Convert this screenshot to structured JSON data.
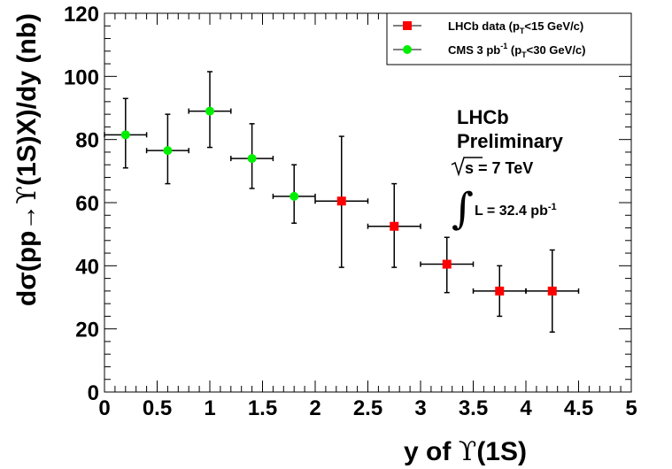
{
  "chart_data": {
    "type": "scatter",
    "title": "",
    "xlabel_prefix": "y of ",
    "xlabel_symbol": "ϒ",
    "xlabel_suffix": "(1S)",
    "ylabel_prefix": "dσ(pp→",
    "ylabel_symbol": "ϒ",
    "ylabel_suffix": "(1S)X)/dy (nb)",
    "xlim": [
      0,
      5
    ],
    "ylim": [
      0,
      120
    ],
    "xticks": [
      "0",
      "0.5",
      "1",
      "1.5",
      "2",
      "2.5",
      "3",
      "3.5",
      "4",
      "4.5",
      "5"
    ],
    "yticks": [
      "0",
      "20",
      "40",
      "60",
      "80",
      "100",
      "120"
    ],
    "grid": false,
    "legend_position": "top-right",
    "series": [
      {
        "name": "LHCb data (pT<15 GeV/c)",
        "legend_main": "LHCb data (p",
        "legend_sub": "T",
        "legend_rest": "<15 GeV/c)",
        "color": "#ff0000",
        "marker": "square",
        "points": [
          {
            "x": 2.25,
            "xerr": 0.25,
            "y": 60.5,
            "ylo": 39.5,
            "yhi": 81.0
          },
          {
            "x": 2.75,
            "xerr": 0.25,
            "y": 52.5,
            "ylo": 39.5,
            "yhi": 66.0
          },
          {
            "x": 3.25,
            "xerr": 0.25,
            "y": 40.5,
            "ylo": 31.5,
            "yhi": 49.0
          },
          {
            "x": 3.75,
            "xerr": 0.25,
            "y": 32.0,
            "ylo": 24.0,
            "yhi": 40.0
          },
          {
            "x": 4.25,
            "xerr": 0.25,
            "y": 32.0,
            "ylo": 19.0,
            "yhi": 45.0
          }
        ]
      },
      {
        "name": "CMS 3 pb-1 (pT<30 GeV/c)",
        "legend_main": "CMS 3 pb",
        "legend_sup": "-1",
        "legend_mid": " (p",
        "legend_sub": "T",
        "legend_rest": "<30 GeV/c)",
        "color": "#00ee00",
        "marker": "circle",
        "points": [
          {
            "x": 0.2,
            "xerr": 0.2,
            "y": 81.5,
            "ylo": 71.0,
            "yhi": 93.0
          },
          {
            "x": 0.6,
            "xerr": 0.2,
            "y": 76.5,
            "ylo": 66.0,
            "yhi": 88.0
          },
          {
            "x": 1.0,
            "xerr": 0.2,
            "y": 89.0,
            "ylo": 77.5,
            "yhi": 101.5
          },
          {
            "x": 1.4,
            "xerr": 0.2,
            "y": 74.0,
            "ylo": 64.5,
            "yhi": 85.0
          },
          {
            "x": 1.8,
            "xerr": 0.2,
            "y": 62.0,
            "ylo": 53.5,
            "yhi": 72.0
          }
        ]
      }
    ],
    "annotations": {
      "line1": "LHCb",
      "line2": "Preliminary",
      "energy_prefix": "s",
      "energy_rest": " = 7 TeV",
      "integral_sign": "∫",
      "lumi_text": "L = 32.4 pb",
      "lumi_sup": "-1"
    }
  }
}
